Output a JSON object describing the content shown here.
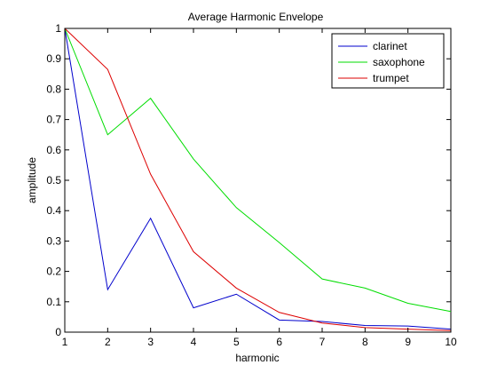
{
  "chart_data": {
    "type": "line",
    "title": "Average Harmonic Envelope",
    "xlabel": "harmonic",
    "ylabel": "amplitude",
    "xlim": [
      1,
      10
    ],
    "ylim": [
      0,
      1
    ],
    "x_ticks": [
      1,
      2,
      3,
      4,
      5,
      6,
      7,
      8,
      9,
      10
    ],
    "y_ticks": [
      0,
      0.1,
      0.2,
      0.3,
      0.4,
      0.5,
      0.6,
      0.7,
      0.8,
      0.9,
      1
    ],
    "x_tick_labels": [
      "1",
      "2",
      "3",
      "4",
      "5",
      "6",
      "7",
      "8",
      "9",
      "10"
    ],
    "y_tick_labels": [
      "0",
      "0.1",
      "0.2",
      "0.3",
      "0.4",
      "0.5",
      "0.6",
      "0.7",
      "0.8",
      "0.9",
      "1"
    ],
    "grid": false,
    "legend_position": "top-right",
    "x": [
      1,
      2,
      3,
      4,
      5,
      6,
      7,
      8,
      9,
      10
    ],
    "series": [
      {
        "name": "clarinet",
        "color": "#0000cc",
        "values": [
          1.0,
          0.14,
          0.375,
          0.08,
          0.125,
          0.04,
          0.035,
          0.022,
          0.02,
          0.01
        ]
      },
      {
        "name": "saxophone",
        "color": "#00dd00",
        "values": [
          1.0,
          0.65,
          0.77,
          0.57,
          0.41,
          0.295,
          0.175,
          0.145,
          0.095,
          0.068
        ]
      },
      {
        "name": "trumpet",
        "color": "#dd0000",
        "values": [
          1.0,
          0.865,
          0.52,
          0.265,
          0.145,
          0.065,
          0.03,
          0.015,
          0.01,
          0.005
        ]
      }
    ]
  }
}
